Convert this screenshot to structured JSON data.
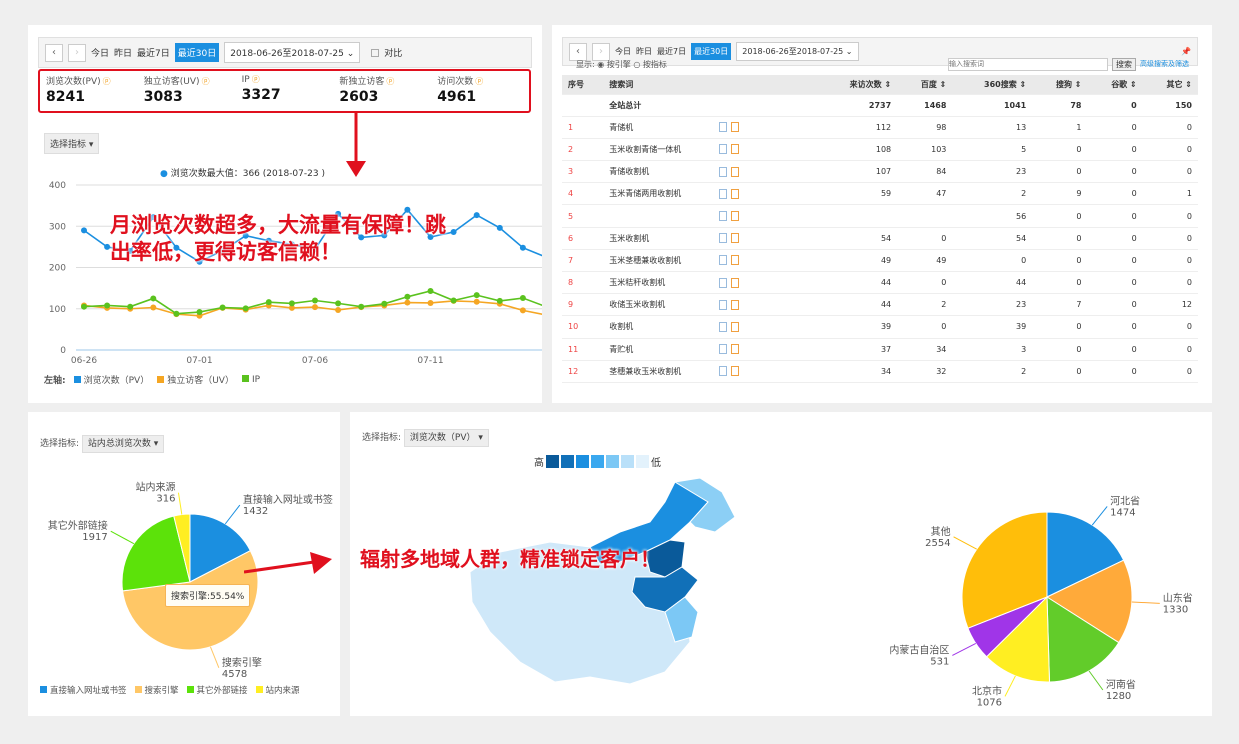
{
  "top_left": {
    "toolbar": {
      "today": "今日",
      "yesterday": "昨日",
      "last7": "最近7日",
      "last30": "最近30日",
      "date_range": "2018-06-26至2018-07-25",
      "compare": "对比"
    },
    "metrics": [
      {
        "label": "浏览次数(PV)",
        "value": "8241"
      },
      {
        "label": "独立访客(UV)",
        "value": "3083"
      },
      {
        "label": "IP",
        "value": "3327"
      },
      {
        "label": "新独立访客",
        "value": "2603"
      },
      {
        "label": "访问次数",
        "value": "4961"
      }
    ],
    "select_metric": "选择指标",
    "max_note": "浏览次数最大值：366 (2018-07-23 )",
    "legend_prefix": "左轴:"
  },
  "chart_data": [
    {
      "type": "line",
      "x": [
        "06-26",
        "06-27",
        "06-28",
        "06-29",
        "06-30",
        "07-01",
        "07-02",
        "07-03",
        "07-04",
        "07-05",
        "07-06",
        "07-07",
        "07-08",
        "07-09",
        "07-10",
        "07-11",
        "07-12",
        "07-13",
        "07-14",
        "07-15",
        "07-16"
      ],
      "xticks": [
        "06-26",
        "07-01",
        "07-06",
        "07-11"
      ],
      "ylim": [
        0,
        400
      ],
      "yticks": [
        0,
        100,
        200,
        300,
        400
      ],
      "grid": true,
      "legend": "bottom-left",
      "series": [
        {
          "name": "浏览次数（PV）",
          "color": "#1b8fe0",
          "values": [
            290,
            250,
            240,
            322,
            248,
            214,
            241,
            277,
            265,
            256,
            244,
            330,
            273,
            278,
            340,
            274,
            286,
            327,
            296,
            248,
            225
          ]
        },
        {
          "name": "独立访客（UV）",
          "color": "#f5a623",
          "values": [
            108,
            102,
            100,
            103,
            87,
            83,
            102,
            98,
            108,
            102,
            104,
            97,
            104,
            108,
            115,
            114,
            119,
            117,
            112,
            96,
            85
          ]
        },
        {
          "name": "IP",
          "color": "#5ac21e",
          "values": [
            105,
            108,
            105,
            125,
            88,
            92,
            103,
            101,
            116,
            113,
            120,
            113,
            105,
            112,
            129,
            143,
            120,
            133,
            119,
            126,
            105
          ]
        }
      ]
    },
    {
      "type": "pie",
      "title": "",
      "slices": [
        {
          "label": "直接输入网址或书签",
          "value": 1432,
          "color": "#1b8fe0"
        },
        {
          "label": "搜索引擎",
          "value": 4578,
          "color": "#ffc766"
        },
        {
          "label": "其它外部链接",
          "value": 1917,
          "color": "#5ce20a"
        },
        {
          "label": "站内来源",
          "value": 316,
          "color": "#ffee22"
        }
      ],
      "tooltip": "搜索引擎:55.54%",
      "legend": "bottom"
    },
    {
      "type": "pie",
      "slices": [
        {
          "label": "河北省",
          "value": 1474,
          "color": "#1b8fe0"
        },
        {
          "label": "山东省",
          "value": 1330,
          "color": "#ffaa3a"
        },
        {
          "label": "河南省",
          "value": 1280,
          "color": "#62cc2a"
        },
        {
          "label": "北京市",
          "value": 1076,
          "color": "#ffee22"
        },
        {
          "label": "内蒙古自治区",
          "value": 531,
          "color": "#a035e8"
        },
        {
          "label": "其他",
          "value": 2554,
          "color": "#ffbe0a"
        }
      ]
    }
  ],
  "top_right": {
    "toolbar": {
      "today": "今日",
      "yesterday": "昨日",
      "last7": "最近7日",
      "last30": "最近30日",
      "date_range": "2018-06-26至2018-07-25"
    },
    "display_label": "显示:",
    "radio1": "按引擎",
    "radio2": "按指标",
    "search_placeholder": "输入搜索词",
    "search_button": "搜索",
    "advanced": "高级搜索及筛选",
    "headers": [
      "序号",
      "搜索词",
      "来访次数 ⇕",
      "百度 ⇕",
      "360搜索 ⇕",
      "搜狗 ⇕",
      "谷歌 ⇕",
      "其它 ⇕"
    ],
    "total": {
      "label": "全站总计",
      "values": [
        "2737",
        "1468",
        "1041",
        "78",
        "0",
        "150"
      ]
    },
    "rows": [
      {
        "n": "1",
        "kw": "青储机",
        "v": [
          "112",
          "98",
          "13",
          "1",
          "0",
          "0"
        ]
      },
      {
        "n": "2",
        "kw": "玉米收割青储一体机",
        "v": [
          "108",
          "103",
          "5",
          "0",
          "0",
          "0"
        ]
      },
      {
        "n": "3",
        "kw": "青储收割机",
        "v": [
          "107",
          "84",
          "23",
          "0",
          "0",
          "0"
        ]
      },
      {
        "n": "4",
        "kw": "玉米青储两用收割机",
        "v": [
          "59",
          "47",
          "2",
          "9",
          "0",
          "1"
        ]
      },
      {
        "n": "5",
        "kw": "",
        "v": [
          "",
          "",
          "56",
          "0",
          "0",
          "0"
        ]
      },
      {
        "n": "6",
        "kw": "玉米收割机",
        "v": [
          "54",
          "0",
          "54",
          "0",
          "0",
          "0"
        ]
      },
      {
        "n": "7",
        "kw": "玉米茎穗兼收收割机",
        "v": [
          "49",
          "49",
          "0",
          "0",
          "0",
          "0"
        ]
      },
      {
        "n": "8",
        "kw": "玉米秸秆收割机",
        "v": [
          "44",
          "0",
          "44",
          "0",
          "0",
          "0"
        ]
      },
      {
        "n": "9",
        "kw": "收储玉米收割机",
        "v": [
          "44",
          "2",
          "23",
          "7",
          "0",
          "12"
        ]
      },
      {
        "n": "10",
        "kw": "收割机",
        "v": [
          "39",
          "0",
          "39",
          "0",
          "0",
          "0"
        ]
      },
      {
        "n": "11",
        "kw": "青贮机",
        "v": [
          "37",
          "34",
          "3",
          "0",
          "0",
          "0"
        ]
      },
      {
        "n": "12",
        "kw": "茎穗兼收玉米收割机",
        "v": [
          "34",
          "32",
          "2",
          "0",
          "0",
          "0"
        ]
      }
    ]
  },
  "bottom_left": {
    "select_label": "选择指标:",
    "select_value": "站内总浏览次数"
  },
  "bottom_right": {
    "select_label": "选择指标:",
    "select_value": "浏览次数（PV）",
    "scale_high": "高",
    "scale_low": "低",
    "scale_colors": [
      "#0a5a9a",
      "#1170b8",
      "#1b8fe0",
      "#3aa8ef",
      "#7cc8f5",
      "#b9e0f9",
      "#e3f2fc"
    ]
  },
  "overlay": {
    "headline1": "月浏览次数超多，大流量有保障！跳出率低，更得访客信赖！",
    "headline2": "辐射多地域人群，精准锁定客户！"
  }
}
